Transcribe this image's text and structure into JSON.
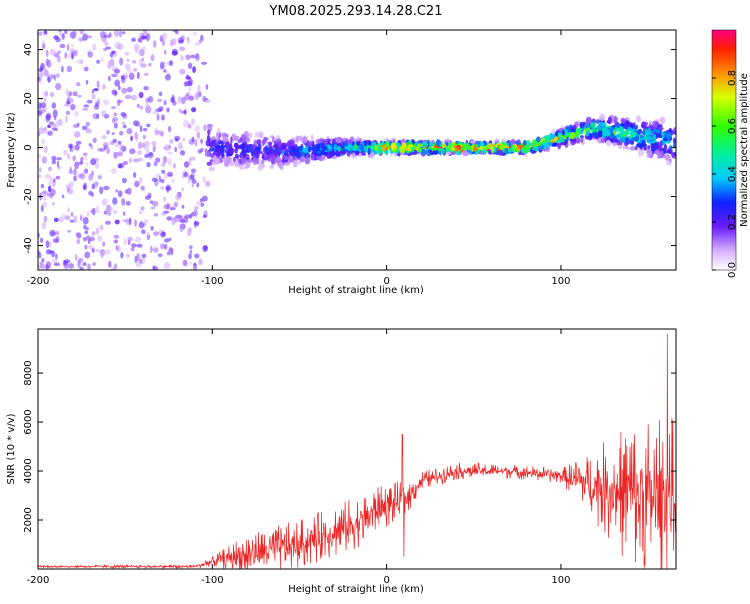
{
  "title": "YM08.2025.293.14.28.C21",
  "colors": {
    "line": "#ee2222",
    "axis": "#000000"
  },
  "chart_data": [
    {
      "type": "heatmap",
      "xlabel": "Height of straight line (km)",
      "ylabel": "Frequency (Hz)",
      "xlim": [
        -200,
        166
      ],
      "ylim": [
        -50,
        48
      ],
      "xticks": [
        -200,
        -100,
        0,
        100
      ],
      "yticks": [
        -40,
        -20,
        0,
        20,
        40
      ],
      "colorbar": {
        "label": "Normalized spectral amplitude",
        "range": [
          0,
          1
        ],
        "ticks": [
          "0.0",
          "0.2",
          "0.4",
          "0.6",
          "0.8"
        ]
      },
      "description_points": [
        {
          "x": -200,
          "f_center": 0,
          "f_spread": 50,
          "amp": 0.1
        },
        {
          "x": -110,
          "f_center": 0,
          "f_spread": 50,
          "amp": 0.1
        },
        {
          "x": -100,
          "f_center": 0,
          "f_spread": 8,
          "amp": 0.25
        },
        {
          "x": -60,
          "f_center": -2,
          "f_spread": 6,
          "amp": 0.3
        },
        {
          "x": -20,
          "f_center": 0,
          "f_spread": 3,
          "amp": 0.5
        },
        {
          "x": 10,
          "f_center": 0,
          "f_spread": 2,
          "amp": 0.95
        },
        {
          "x": 80,
          "f_center": 0,
          "f_spread": 2,
          "amp": 0.9
        },
        {
          "x": 120,
          "f_center": 8,
          "f_spread": 4,
          "amp": 0.6
        },
        {
          "x": 166,
          "f_center": 2,
          "f_spread": 8,
          "amp": 0.4
        }
      ]
    },
    {
      "type": "line",
      "xlabel": "Height of straight line (km)",
      "ylabel": "SNR (10 * v/v)",
      "xlim": [
        -200,
        166
      ],
      "ylim": [
        0,
        9800
      ],
      "xticks": [
        -200,
        -100,
        0,
        100
      ],
      "yticks": [
        2000,
        4000,
        6000,
        8000
      ],
      "envelope": [
        {
          "x": -200,
          "base": 100,
          "amp": 50
        },
        {
          "x": -110,
          "base": 100,
          "amp": 80
        },
        {
          "x": -100,
          "base": 300,
          "amp": 200
        },
        {
          "x": -80,
          "base": 600,
          "amp": 900
        },
        {
          "x": -50,
          "base": 1000,
          "amp": 1000
        },
        {
          "x": -20,
          "base": 1800,
          "amp": 1100
        },
        {
          "x": 0,
          "base": 2600,
          "amp": 900
        },
        {
          "x": 10,
          "base": 2800,
          "amp": 800
        },
        {
          "x": 20,
          "base": 3600,
          "amp": 400
        },
        {
          "x": 40,
          "base": 4000,
          "amp": 350
        },
        {
          "x": 70,
          "base": 4000,
          "amp": 300
        },
        {
          "x": 100,
          "base": 3800,
          "amp": 300
        },
        {
          "x": 115,
          "base": 3500,
          "amp": 1200
        },
        {
          "x": 140,
          "base": 3000,
          "amp": 3000
        },
        {
          "x": 166,
          "base": 2800,
          "amp": 3500
        }
      ],
      "spikes": [
        {
          "x": 9,
          "y": 5500
        },
        {
          "x": 10,
          "y": 500
        },
        {
          "x": 161,
          "y": 9600
        }
      ]
    }
  ]
}
